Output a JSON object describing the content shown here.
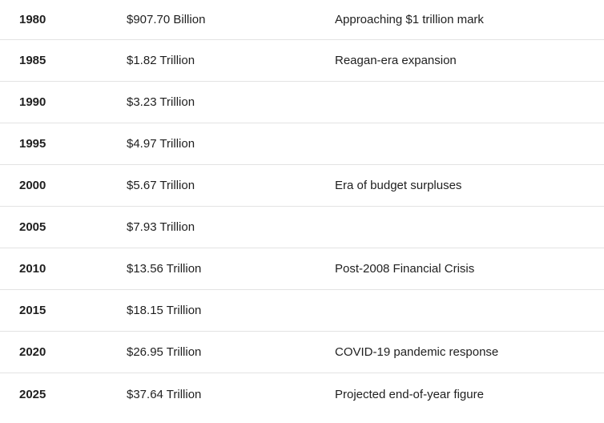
{
  "table": {
    "rows": [
      {
        "year": "1980",
        "debt": "$907.70 Billion",
        "note": "Approaching $1 trillion mark"
      },
      {
        "year": "1985",
        "debt": "$1.82 Trillion",
        "note": "Reagan-era expansion"
      },
      {
        "year": "1990",
        "debt": "$3.23 Trillion",
        "note": ""
      },
      {
        "year": "1995",
        "debt": "$4.97 Trillion",
        "note": ""
      },
      {
        "year": "2000",
        "debt": "$5.67 Trillion",
        "note": "Era of budget surpluses"
      },
      {
        "year": "2005",
        "debt": "$7.93 Trillion",
        "note": ""
      },
      {
        "year": "2010",
        "debt": "$13.56 Trillion",
        "note": "Post-2008 Financial Crisis"
      },
      {
        "year": "2015",
        "debt": "$18.15 Trillion",
        "note": ""
      },
      {
        "year": "2020",
        "debt": "$26.95 Trillion",
        "note": "COVID-19 pandemic response"
      },
      {
        "year": "2025",
        "debt": "$37.64 Trillion",
        "note": "Projected end-of-year figure"
      }
    ]
  }
}
